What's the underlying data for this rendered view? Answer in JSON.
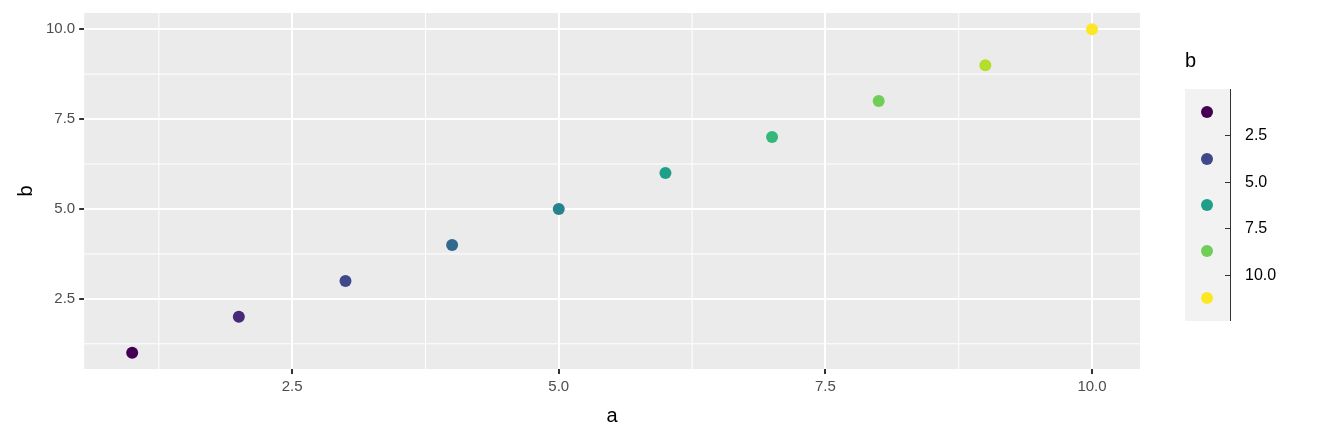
{
  "chart_data": {
    "type": "scatter",
    "xlabel": "a",
    "ylabel": "b",
    "clabel": "b",
    "x": [
      1,
      2,
      3,
      4,
      5,
      6,
      7,
      8,
      9,
      10
    ],
    "values": [
      1,
      2,
      3,
      4,
      5,
      6,
      7,
      8,
      9,
      10
    ],
    "colors": [
      "#440154",
      "#482878",
      "#3e4989",
      "#31688e",
      "#26828e",
      "#1f9e89",
      "#35b779",
      "#6ece58",
      "#b5de2b",
      "#fde725"
    ],
    "annotations": [
      "2.5",
      "5.0",
      "7.5",
      "10.0"
    ],
    "xlim": [
      0.55,
      10.45
    ],
    "ylim": [
      0.55,
      10.45
    ],
    "xticks": [
      {
        "value": 2.5,
        "label": "2.5"
      },
      {
        "value": 5,
        "label": "5.0"
      },
      {
        "value": 7.5,
        "label": "7.5"
      },
      {
        "value": 10,
        "label": "10.0"
      }
    ],
    "yticks": [
      {
        "value": 2.5,
        "label": "2.5"
      },
      {
        "value": 5,
        "label": "5.0"
      },
      {
        "value": 7.5,
        "label": "7.5"
      },
      {
        "value": 10,
        "label": "10.0"
      }
    ],
    "grid": true,
    "marker": "circle"
  }
}
